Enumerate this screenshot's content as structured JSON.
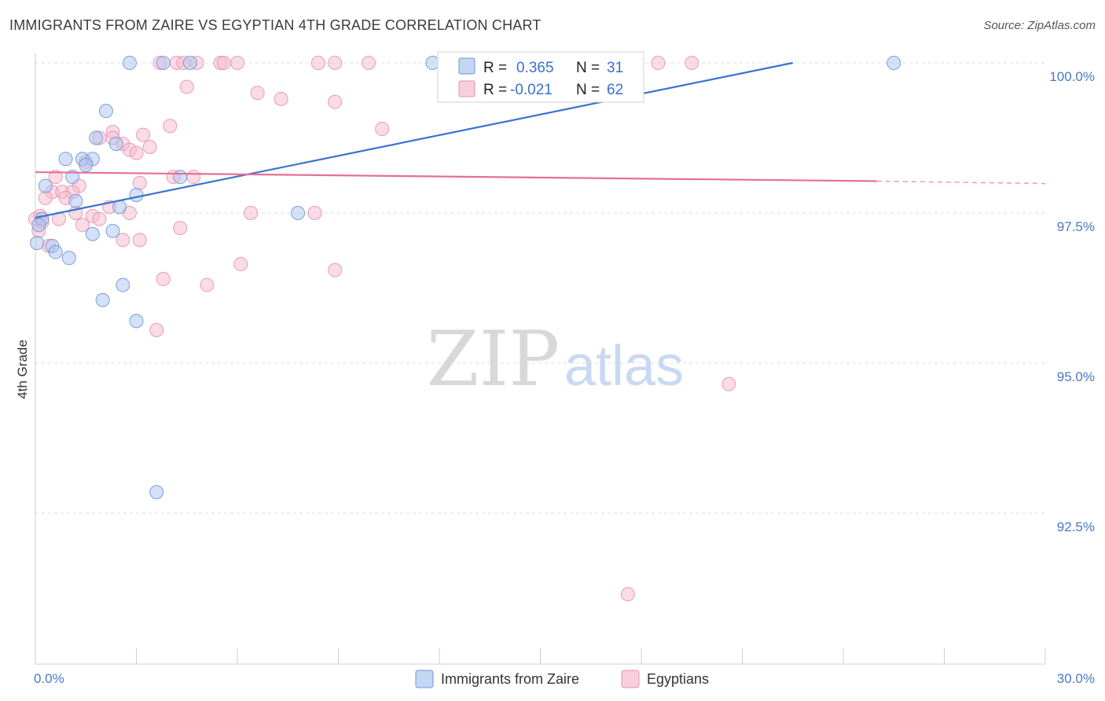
{
  "header": {
    "title": "IMMIGRANTS FROM ZAIRE VS EGYPTIAN 4TH GRADE CORRELATION CHART",
    "source": "Source: ZipAtlas.com"
  },
  "watermark": {
    "zip": "ZIP",
    "atlas": "atlas"
  },
  "legend": {
    "rows": [
      {
        "r_label": "R =",
        "r_value": "0.365",
        "n_label": "N =",
        "n_value": "31"
      },
      {
        "r_label": "R =",
        "r_value": "-0.021",
        "n_label": "N =",
        "n_value": "62"
      }
    ]
  },
  "bottom_legend": [
    {
      "label": "Immigrants from Zaire"
    },
    {
      "label": "Egyptians"
    }
  ],
  "colors": {
    "zaire_fill": "#a9c4ef",
    "zaire_stroke": "#6f97d8",
    "zaire_line": "#3a73cf",
    "egypt_fill": "#f5b9cd",
    "egypt_stroke": "#e891ae",
    "egypt_line": "#e56f98",
    "tick_text": "#4a77c9",
    "grid": "#dcdcdc"
  },
  "chart_data": {
    "type": "scatter",
    "title": "IMMIGRANTS FROM ZAIRE VS EGYPTIAN 4TH GRADE CORRELATION CHART",
    "xlabel": "",
    "ylabel": "4th Grade",
    "xlim": [
      0,
      30
    ],
    "ylim": [
      90.9,
      100.4
    ],
    "x_tick_labels": [
      "0.0%",
      "30.0%"
    ],
    "y_ticks": [
      {
        "value": 100.0,
        "label": "100.0%"
      },
      {
        "value": 97.5,
        "label": "97.5%"
      },
      {
        "value": 95.0,
        "label": "95.0%"
      },
      {
        "value": 92.5,
        "label": "92.5%"
      }
    ],
    "grid": true,
    "legend_position": "top-center",
    "series": [
      {
        "name": "Immigrants from Zaire",
        "r": 0.365,
        "n": 31,
        "trend": {
          "x": [
            0,
            22.5
          ],
          "y": [
            97.42,
            100.0
          ]
        },
        "points": [
          [
            2.8,
            100.0
          ],
          [
            3.8,
            100.0
          ],
          [
            4.6,
            100.0
          ],
          [
            11.8,
            100.0
          ],
          [
            25.5,
            100.0
          ],
          [
            2.1,
            99.2
          ],
          [
            1.8,
            98.75
          ],
          [
            2.4,
            98.65
          ],
          [
            0.9,
            98.4
          ],
          [
            1.4,
            98.4
          ],
          [
            1.7,
            98.4
          ],
          [
            1.5,
            98.3
          ],
          [
            1.1,
            98.1
          ],
          [
            4.3,
            98.1
          ],
          [
            0.3,
            97.95
          ],
          [
            3.0,
            97.8
          ],
          [
            1.2,
            97.7
          ],
          [
            2.5,
            97.6
          ],
          [
            7.8,
            97.5
          ],
          [
            0.2,
            97.4
          ],
          [
            0.1,
            97.3
          ],
          [
            2.3,
            97.2
          ],
          [
            1.7,
            97.15
          ],
          [
            0.05,
            97.0
          ],
          [
            0.5,
            96.95
          ],
          [
            0.6,
            96.85
          ],
          [
            1.0,
            96.75
          ],
          [
            2.6,
            96.3
          ],
          [
            2.0,
            96.05
          ],
          [
            3.0,
            95.7
          ],
          [
            3.6,
            92.85
          ]
        ]
      },
      {
        "name": "Egyptians",
        "r": -0.021,
        "n": 62,
        "trend": {
          "x": [
            0,
            25
          ],
          "y": [
            98.18,
            98.03
          ]
        },
        "trend_dashed": {
          "x": [
            25,
            30
          ],
          "y": [
            98.03,
            97.99
          ]
        },
        "points": [
          [
            3.7,
            100.0
          ],
          [
            4.2,
            100.0
          ],
          [
            4.4,
            100.0
          ],
          [
            4.8,
            100.0
          ],
          [
            5.5,
            100.0
          ],
          [
            5.6,
            100.0
          ],
          [
            6.0,
            100.0
          ],
          [
            8.4,
            100.0
          ],
          [
            8.9,
            100.0
          ],
          [
            9.9,
            100.0
          ],
          [
            13.1,
            100.0
          ],
          [
            18.5,
            100.0
          ],
          [
            19.5,
            100.0
          ],
          [
            4.5,
            99.6
          ],
          [
            6.6,
            99.5
          ],
          [
            7.3,
            99.4
          ],
          [
            8.9,
            99.35
          ],
          [
            2.3,
            98.85
          ],
          [
            4.0,
            98.95
          ],
          [
            10.3,
            98.9
          ],
          [
            3.2,
            98.8
          ],
          [
            2.3,
            98.75
          ],
          [
            1.9,
            98.75
          ],
          [
            2.6,
            98.65
          ],
          [
            3.4,
            98.6
          ],
          [
            2.8,
            98.55
          ],
          [
            3.0,
            98.5
          ],
          [
            1.5,
            98.35
          ],
          [
            4.1,
            98.1
          ],
          [
            4.7,
            98.1
          ],
          [
            0.6,
            98.1
          ],
          [
            3.1,
            98.0
          ],
          [
            1.3,
            97.95
          ],
          [
            0.5,
            97.85
          ],
          [
            0.8,
            97.85
          ],
          [
            1.1,
            97.85
          ],
          [
            0.3,
            97.75
          ],
          [
            0.9,
            97.75
          ],
          [
            2.2,
            97.6
          ],
          [
            1.2,
            97.5
          ],
          [
            2.8,
            97.5
          ],
          [
            6.4,
            97.5
          ],
          [
            8.3,
            97.5
          ],
          [
            1.7,
            97.45
          ],
          [
            0.0,
            97.4
          ],
          [
            0.7,
            97.4
          ],
          [
            1.9,
            97.4
          ],
          [
            0.2,
            97.35
          ],
          [
            1.4,
            97.3
          ],
          [
            4.3,
            97.25
          ],
          [
            0.1,
            97.2
          ],
          [
            2.6,
            97.05
          ],
          [
            3.1,
            97.05
          ],
          [
            0.4,
            96.95
          ],
          [
            6.1,
            96.65
          ],
          [
            8.9,
            96.55
          ],
          [
            3.8,
            96.4
          ],
          [
            5.1,
            96.3
          ],
          [
            3.6,
            95.55
          ],
          [
            20.6,
            94.65
          ],
          [
            17.6,
            91.15
          ],
          [
            0.15,
            97.45
          ]
        ]
      }
    ]
  }
}
